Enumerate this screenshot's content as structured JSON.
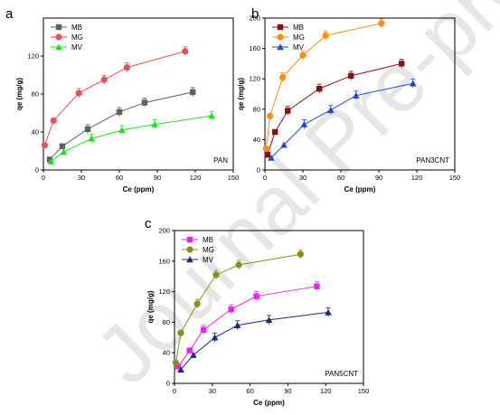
{
  "watermark": "Journal Pre-proof",
  "chart_data": [
    {
      "type": "line",
      "panel_letter": "a",
      "name": "PAN",
      "xlabel": "Ce (ppm)",
      "ylabel": "qe (mg/g)",
      "xlim": [
        0,
        150
      ],
      "ylim": [
        0,
        160
      ],
      "xticks": [
        0,
        30,
        60,
        90,
        120,
        150
      ],
      "yticks": [
        0,
        40,
        80,
        120
      ],
      "legend_position": "top-left",
      "series": [
        {
          "name": "MB",
          "color": "#5f5f5f",
          "marker": "square",
          "x": [
            5,
            15,
            35,
            60,
            80,
            118
          ],
          "y": [
            11,
            25,
            43,
            61,
            71,
            82
          ]
        },
        {
          "name": "MG",
          "color": "#e8505a",
          "marker": "circle",
          "x": [
            1,
            8,
            28,
            48,
            66,
            112
          ],
          "y": [
            26,
            52,
            81,
            95,
            108,
            125
          ]
        },
        {
          "name": "MV",
          "color": "#22dd22",
          "marker": "triangle",
          "x": [
            6,
            16,
            38,
            62,
            88,
            133
          ],
          "y": [
            9,
            19,
            33,
            42,
            48,
            57
          ]
        }
      ]
    },
    {
      "type": "line",
      "panel_letter": "b",
      "name": "PAN3CNT",
      "xlabel": "Ce (ppm)",
      "ylabel": "qe (mg/g)",
      "xlim": [
        0,
        150
      ],
      "ylim": [
        0,
        200
      ],
      "xticks": [
        0,
        30,
        60,
        90,
        120,
        150
      ],
      "yticks": [
        0,
        40,
        80,
        120,
        160,
        200
      ],
      "legend_position": "top-left",
      "series": [
        {
          "name": "MB",
          "color": "#8b1010",
          "marker": "square",
          "x": [
            2,
            8,
            18,
            43,
            68,
            108
          ],
          "y": [
            20,
            50,
            78,
            107,
            124,
            140
          ]
        },
        {
          "name": "MG",
          "color": "#ff8c1a",
          "marker": "circle",
          "x": [
            1,
            4,
            14,
            30,
            48,
            92
          ],
          "y": [
            28,
            71,
            122,
            151,
            177,
            193
          ]
        },
        {
          "name": "MV",
          "color": "#2244dd",
          "marker": "triangle",
          "x": [
            5,
            15,
            31,
            52,
            72,
            117
          ],
          "y": [
            16,
            33,
            60,
            79,
            98,
            114
          ]
        }
      ]
    },
    {
      "type": "line",
      "panel_letter": "c",
      "name": "PAN5CNT",
      "xlabel": "Ce (ppm)",
      "ylabel": "qe (mg/g)",
      "xlim": [
        0,
        150
      ],
      "ylim": [
        0,
        200
      ],
      "xticks": [
        0,
        30,
        60,
        90,
        120,
        150
      ],
      "yticks": [
        0,
        40,
        80,
        120,
        160,
        200
      ],
      "legend_position": "top-left",
      "series": [
        {
          "name": "MB",
          "color": "#ee22ee",
          "marker": "square",
          "x": [
            3,
            12,
            23,
            45,
            65,
            113
          ],
          "y": [
            22,
            43,
            70,
            97,
            114,
            127
          ]
        },
        {
          "name": "MG",
          "color": "#8c8c1a",
          "marker": "circle",
          "x": [
            1,
            5,
            18,
            33,
            51,
            100
          ],
          "y": [
            27,
            66,
            104,
            142,
            155,
            169
          ]
        },
        {
          "name": "MV",
          "color": "#1a2a80",
          "marker": "triangle",
          "x": [
            5,
            15,
            32,
            50,
            75,
            122
          ],
          "y": [
            18,
            37,
            60,
            76,
            83,
            93
          ]
        }
      ]
    }
  ]
}
